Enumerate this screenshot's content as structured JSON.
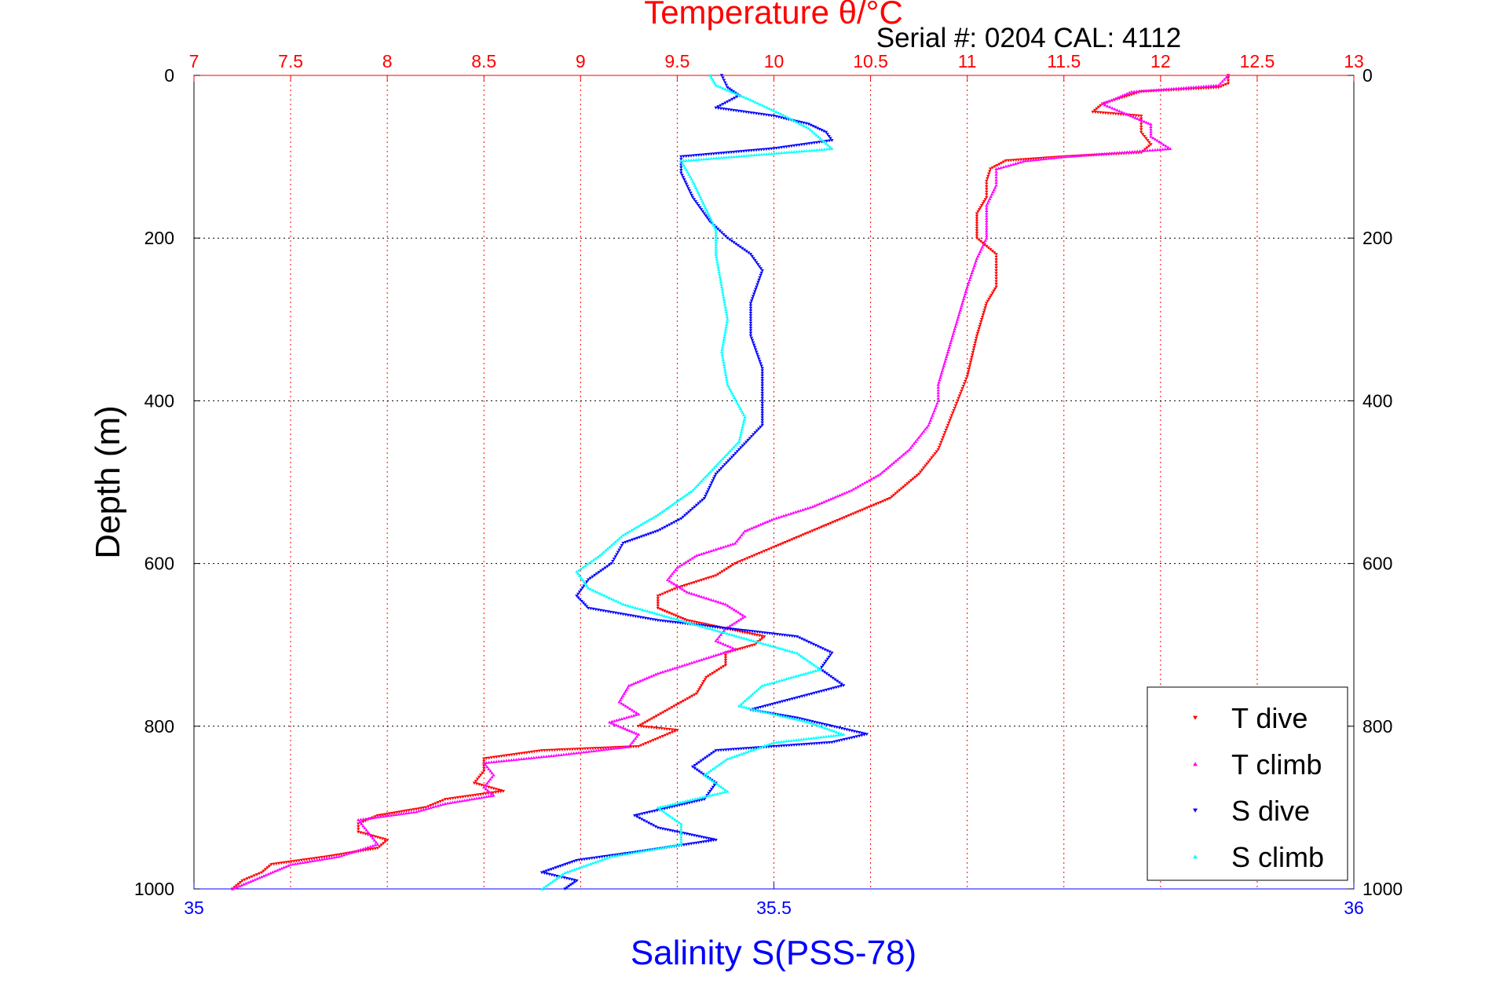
{
  "header": {
    "title": "Temperature θ/°C",
    "serial": "Serial #: 0204  CAL: 4112"
  },
  "colors": {
    "temperature_axis": "#ff0000",
    "salinity_axis": "#0000ff",
    "t_dive": "#ff0000",
    "t_climb": "#ff00ff",
    "s_dive": "#0000ff",
    "s_climb": "#00ffff",
    "grid": "#ff0000",
    "depth_grid": "#000000"
  },
  "chart_data": {
    "type": "scatter",
    "title": "Temperature θ/°C",
    "xlabel": "Salinity S(PSS-78)",
    "ylabel": "Depth (m)",
    "top_axis": {
      "label": "Temperature θ/°C",
      "range": [
        7,
        13
      ],
      "ticks": [
        "7",
        "7.5",
        "8",
        "8.5",
        "9",
        "9.5",
        "10",
        "10.5",
        "11",
        "11.5",
        "12",
        "12.5",
        "13"
      ]
    },
    "bottom_axis": {
      "label": "Salinity S(PSS-78)",
      "range": [
        35,
        36
      ],
      "ticks": [
        "35",
        "35.5",
        "36"
      ]
    },
    "y_axis": {
      "label": "Depth (m)",
      "range": [
        0,
        1000
      ],
      "reversed": true,
      "ticks": [
        "0",
        "200",
        "400",
        "600",
        "800",
        "1000"
      ]
    },
    "grid": true,
    "legend_position": "bottom-right",
    "series": [
      {
        "name": "T dive",
        "axis": "temperature",
        "marker": "triangle-down",
        "points": [
          [
            12.35,
            0
          ],
          [
            12.35,
            10
          ],
          [
            12.3,
            15
          ],
          [
            11.9,
            20
          ],
          [
            11.7,
            35
          ],
          [
            11.65,
            45
          ],
          [
            11.9,
            50
          ],
          [
            11.9,
            70
          ],
          [
            11.95,
            85
          ],
          [
            11.9,
            95
          ],
          [
            11.5,
            100
          ],
          [
            11.2,
            105
          ],
          [
            11.12,
            115
          ],
          [
            11.1,
            130
          ],
          [
            11.1,
            150
          ],
          [
            11.05,
            170
          ],
          [
            11.05,
            200
          ],
          [
            11.1,
            210
          ],
          [
            11.15,
            220
          ],
          [
            11.15,
            240
          ],
          [
            11.15,
            260
          ],
          [
            11.1,
            280
          ],
          [
            11.05,
            320
          ],
          [
            11.0,
            370
          ],
          [
            10.95,
            400
          ],
          [
            10.9,
            430
          ],
          [
            10.85,
            460
          ],
          [
            10.75,
            490
          ],
          [
            10.6,
            520
          ],
          [
            10.4,
            540
          ],
          [
            10.2,
            560
          ],
          [
            10.0,
            580
          ],
          [
            9.9,
            590
          ],
          [
            9.8,
            600
          ],
          [
            9.7,
            615
          ],
          [
            9.5,
            630
          ],
          [
            9.4,
            640
          ],
          [
            9.4,
            655
          ],
          [
            9.55,
            670
          ],
          [
            9.75,
            680
          ],
          [
            9.95,
            690
          ],
          [
            9.9,
            700
          ],
          [
            9.75,
            710
          ],
          [
            9.75,
            725
          ],
          [
            9.65,
            740
          ],
          [
            9.6,
            760
          ],
          [
            9.45,
            780
          ],
          [
            9.3,
            800
          ],
          [
            9.5,
            805
          ],
          [
            9.4,
            815
          ],
          [
            9.3,
            825
          ],
          [
            8.8,
            830
          ],
          [
            8.5,
            840
          ],
          [
            8.5,
            855
          ],
          [
            8.45,
            870
          ],
          [
            8.6,
            880
          ],
          [
            8.3,
            890
          ],
          [
            8.2,
            900
          ],
          [
            7.95,
            910
          ],
          [
            7.85,
            920
          ],
          [
            7.85,
            930
          ],
          [
            8.0,
            940
          ],
          [
            7.95,
            950
          ],
          [
            7.7,
            960
          ],
          [
            7.4,
            970
          ],
          [
            7.35,
            980
          ],
          [
            7.25,
            990
          ],
          [
            7.2,
            1000
          ]
        ]
      },
      {
        "name": "T climb",
        "axis": "temperature",
        "marker": "triangle-up",
        "points": [
          [
            12.35,
            0
          ],
          [
            12.3,
            12
          ],
          [
            11.85,
            20
          ],
          [
            11.7,
            35
          ],
          [
            11.8,
            45
          ],
          [
            11.95,
            60
          ],
          [
            11.95,
            75
          ],
          [
            12.05,
            90
          ],
          [
            11.5,
            100
          ],
          [
            11.3,
            105
          ],
          [
            11.15,
            115
          ],
          [
            11.15,
            135
          ],
          [
            11.1,
            160
          ],
          [
            11.1,
            185
          ],
          [
            11.1,
            200
          ],
          [
            11.05,
            225
          ],
          [
            11.0,
            260
          ],
          [
            10.95,
            300
          ],
          [
            10.9,
            340
          ],
          [
            10.85,
            380
          ],
          [
            10.85,
            400
          ],
          [
            10.8,
            430
          ],
          [
            10.7,
            460
          ],
          [
            10.55,
            490
          ],
          [
            10.4,
            510
          ],
          [
            10.2,
            530
          ],
          [
            10.0,
            545
          ],
          [
            9.85,
            560
          ],
          [
            9.8,
            575
          ],
          [
            9.6,
            590
          ],
          [
            9.5,
            605
          ],
          [
            9.45,
            620
          ],
          [
            9.55,
            635
          ],
          [
            9.75,
            650
          ],
          [
            9.85,
            665
          ],
          [
            9.75,
            680
          ],
          [
            9.7,
            695
          ],
          [
            9.8,
            705
          ],
          [
            9.6,
            720
          ],
          [
            9.4,
            735
          ],
          [
            9.25,
            750
          ],
          [
            9.2,
            770
          ],
          [
            9.3,
            785
          ],
          [
            9.15,
            795
          ],
          [
            9.3,
            810
          ],
          [
            9.25,
            825
          ],
          [
            8.9,
            835
          ],
          [
            8.5,
            845
          ],
          [
            8.55,
            860
          ],
          [
            8.5,
            875
          ],
          [
            8.55,
            885
          ],
          [
            8.3,
            895
          ],
          [
            8.15,
            905
          ],
          [
            7.85,
            915
          ],
          [
            7.9,
            930
          ],
          [
            7.95,
            945
          ],
          [
            7.75,
            960
          ],
          [
            7.5,
            970
          ],
          [
            7.35,
            985
          ],
          [
            7.2,
            1000
          ]
        ]
      },
      {
        "name": "S dive",
        "axis": "salinity",
        "marker": "triangle-down",
        "points": [
          [
            35.455,
            0
          ],
          [
            35.46,
            15
          ],
          [
            35.47,
            25
          ],
          [
            35.45,
            40
          ],
          [
            35.5,
            50
          ],
          [
            35.53,
            60
          ],
          [
            35.545,
            70
          ],
          [
            35.55,
            80
          ],
          [
            35.5,
            90
          ],
          [
            35.42,
            100
          ],
          [
            35.42,
            120
          ],
          [
            35.43,
            150
          ],
          [
            35.445,
            180
          ],
          [
            35.46,
            200
          ],
          [
            35.48,
            220
          ],
          [
            35.49,
            240
          ],
          [
            35.48,
            280
          ],
          [
            35.48,
            320
          ],
          [
            35.49,
            360
          ],
          [
            35.49,
            400
          ],
          [
            35.49,
            430
          ],
          [
            35.47,
            460
          ],
          [
            35.45,
            490
          ],
          [
            35.44,
            520
          ],
          [
            35.42,
            545
          ],
          [
            35.4,
            560
          ],
          [
            35.37,
            575
          ],
          [
            35.36,
            600
          ],
          [
            35.34,
            620
          ],
          [
            35.33,
            640
          ],
          [
            35.34,
            655
          ],
          [
            35.4,
            670
          ],
          [
            35.46,
            680
          ],
          [
            35.52,
            690
          ],
          [
            35.55,
            710
          ],
          [
            35.54,
            730
          ],
          [
            35.56,
            750
          ],
          [
            35.52,
            765
          ],
          [
            35.48,
            780
          ],
          [
            35.52,
            790
          ],
          [
            35.58,
            810
          ],
          [
            35.55,
            820
          ],
          [
            35.45,
            830
          ],
          [
            35.43,
            850
          ],
          [
            35.45,
            870
          ],
          [
            35.44,
            890
          ],
          [
            35.38,
            910
          ],
          [
            35.4,
            925
          ],
          [
            35.45,
            940
          ],
          [
            35.38,
            955
          ],
          [
            35.33,
            965
          ],
          [
            35.3,
            980
          ],
          [
            35.33,
            990
          ],
          [
            35.32,
            1000
          ]
        ]
      },
      {
        "name": "S climb",
        "axis": "salinity",
        "marker": "triangle-up",
        "points": [
          [
            35.445,
            0
          ],
          [
            35.45,
            12
          ],
          [
            35.48,
            30
          ],
          [
            35.51,
            50
          ],
          [
            35.53,
            65
          ],
          [
            35.55,
            90
          ],
          [
            35.42,
            105
          ],
          [
            35.43,
            130
          ],
          [
            35.44,
            160
          ],
          [
            35.45,
            190
          ],
          [
            35.45,
            220
          ],
          [
            35.455,
            260
          ],
          [
            35.46,
            300
          ],
          [
            35.455,
            340
          ],
          [
            35.46,
            380
          ],
          [
            35.475,
            420
          ],
          [
            35.47,
            450
          ],
          [
            35.45,
            480
          ],
          [
            35.43,
            510
          ],
          [
            35.4,
            540
          ],
          [
            35.37,
            565
          ],
          [
            35.35,
            590
          ],
          [
            35.33,
            610
          ],
          [
            35.34,
            630
          ],
          [
            35.37,
            650
          ],
          [
            35.42,
            670
          ],
          [
            35.47,
            690
          ],
          [
            35.52,
            710
          ],
          [
            35.54,
            730
          ],
          [
            35.49,
            750
          ],
          [
            35.47,
            775
          ],
          [
            35.53,
            795
          ],
          [
            35.56,
            810
          ],
          [
            35.5,
            820
          ],
          [
            35.46,
            840
          ],
          [
            35.44,
            860
          ],
          [
            35.46,
            880
          ],
          [
            35.4,
            900
          ],
          [
            35.42,
            920
          ],
          [
            35.42,
            945
          ],
          [
            35.36,
            960
          ],
          [
            35.32,
            980
          ],
          [
            35.3,
            1000
          ]
        ]
      }
    ]
  }
}
